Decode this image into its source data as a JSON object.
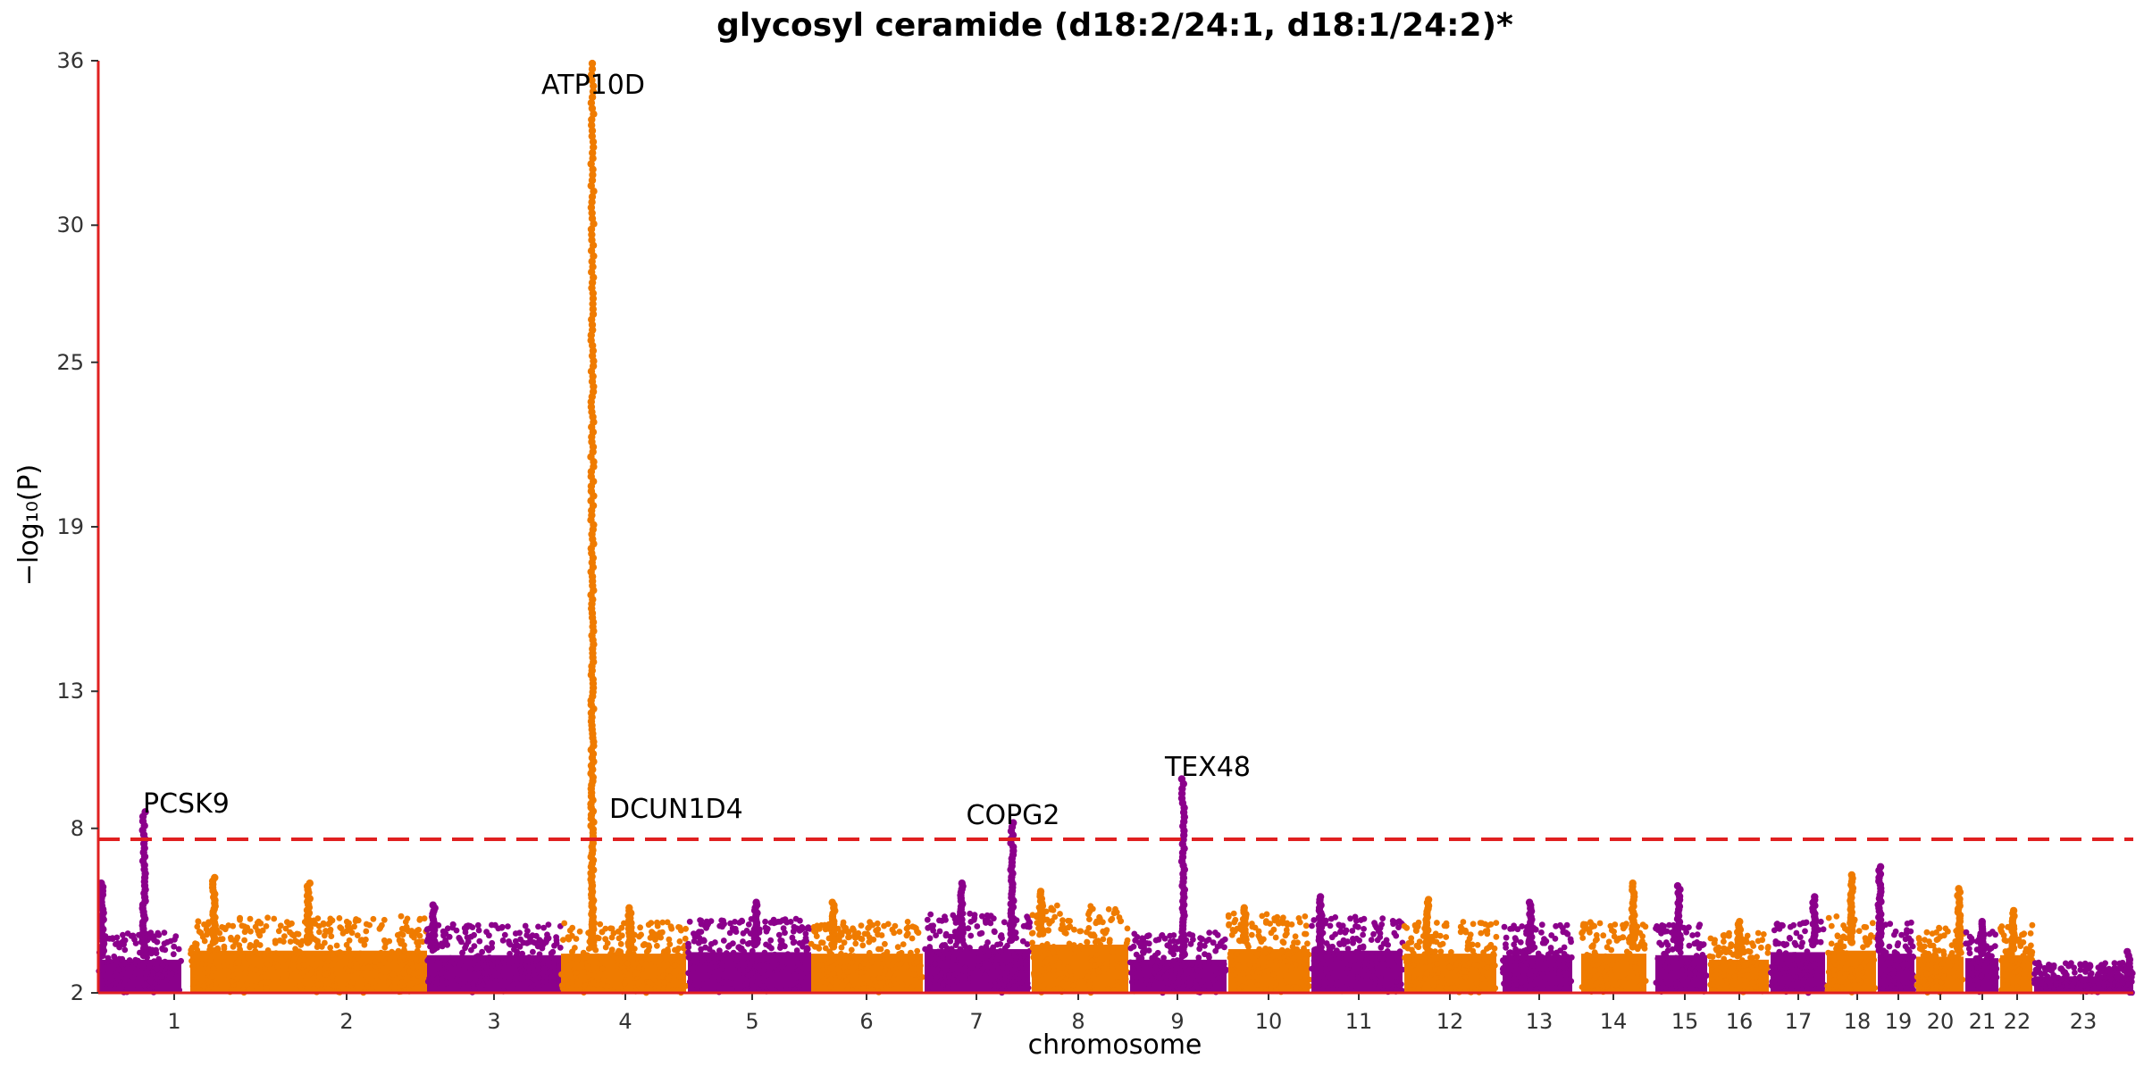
{
  "chart_data": {
    "type": "scatter",
    "title": "glycosyl ceramide (d18:2/24:1, d18:1/24:2)*",
    "xlabel": "chromosome",
    "ylabel": "−log₁₀(P)",
    "yticks": [
      2,
      8,
      13,
      19,
      25,
      30,
      36
    ],
    "ylim": [
      2,
      36
    ],
    "threshold": 7.6,
    "threshold_style": "dashed",
    "colors": {
      "odd": "#8b008b",
      "even": "#ef7b00",
      "axis": "#e02020",
      "threshold": "#e02020",
      "text": "#333333"
    },
    "chromosomes": [
      {
        "label": "1",
        "base": 4.2,
        "peaks": [
          {
            "x": 0.55,
            "y": 8.6
          },
          {
            "x": 0.05,
            "y": 6.0
          }
        ]
      },
      {
        "label": "2",
        "base": 4.8,
        "peaks": [
          {
            "x": 0.1,
            "y": 6.2
          },
          {
            "x": 0.5,
            "y": 6.0
          }
        ]
      },
      {
        "label": "3",
        "base": 4.5,
        "peaks": [
          {
            "x": 0.05,
            "y": 5.2
          }
        ]
      },
      {
        "label": "4",
        "base": 4.6,
        "peaks": [
          {
            "x": 0.25,
            "y": 35.9
          },
          {
            "x": 0.55,
            "y": 5.1
          }
        ]
      },
      {
        "label": "5",
        "base": 4.7,
        "peaks": [
          {
            "x": 0.55,
            "y": 5.3
          }
        ]
      },
      {
        "label": "6",
        "base": 4.6,
        "peaks": [
          {
            "x": 0.2,
            "y": 5.3
          }
        ]
      },
      {
        "label": "7",
        "base": 4.9,
        "peaks": [
          {
            "x": 0.83,
            "y": 8.2
          },
          {
            "x": 0.35,
            "y": 6.0
          }
        ]
      },
      {
        "label": "8",
        "base": 5.2,
        "peaks": [
          {
            "x": 0.1,
            "y": 5.7
          }
        ]
      },
      {
        "label": "9",
        "base": 4.2,
        "peaks": [
          {
            "x": 0.55,
            "y": 9.8
          }
        ]
      },
      {
        "label": "10",
        "base": 4.9,
        "peaks": [
          {
            "x": 0.2,
            "y": 5.1
          }
        ]
      },
      {
        "label": "11",
        "base": 4.8,
        "peaks": [
          {
            "x": 0.1,
            "y": 5.5
          }
        ]
      },
      {
        "label": "12",
        "base": 4.6,
        "peaks": [
          {
            "x": 0.25,
            "y": 5.4
          }
        ]
      },
      {
        "label": "13",
        "base": 4.5,
        "peaks": [
          {
            "x": 0.4,
            "y": 5.3
          }
        ]
      },
      {
        "label": "14",
        "base": 4.6,
        "peaks": [
          {
            "x": 0.8,
            "y": 6.0
          }
        ]
      },
      {
        "label": "15",
        "base": 4.5,
        "peaks": [
          {
            "x": 0.45,
            "y": 5.9
          }
        ]
      },
      {
        "label": "16",
        "base": 4.2,
        "peaks": [
          {
            "x": 0.5,
            "y": 4.6
          }
        ]
      },
      {
        "label": "17",
        "base": 4.7,
        "peaks": [
          {
            "x": 0.8,
            "y": 5.5
          }
        ]
      },
      {
        "label": "18",
        "base": 4.8,
        "peaks": [
          {
            "x": 0.5,
            "y": 6.3
          }
        ]
      },
      {
        "label": "19",
        "base": 4.6,
        "peaks": [
          {
            "x": 0.05,
            "y": 6.6
          }
        ]
      },
      {
        "label": "20",
        "base": 4.4,
        "peaks": [
          {
            "x": 0.9,
            "y": 5.8
          }
        ]
      },
      {
        "label": "21",
        "base": 4.3,
        "peaks": [
          {
            "x": 0.5,
            "y": 4.6
          }
        ]
      },
      {
        "label": "22",
        "base": 4.5,
        "peaks": [
          {
            "x": 0.4,
            "y": 5.0
          }
        ]
      },
      {
        "label": "23",
        "base": 3.1,
        "peaks": [
          {
            "x": 0.95,
            "y": 3.5
          }
        ]
      }
    ],
    "annotations": [
      {
        "label": "ATP10D",
        "chrom": "4",
        "y": 35.9
      },
      {
        "label": "PCSK9",
        "chrom": "1",
        "y": 8.6
      },
      {
        "label": "DCUN1D4",
        "chrom": "4",
        "y": 9.5
      },
      {
        "label": "COPG2",
        "chrom": "7",
        "y": 8.2
      },
      {
        "label": "TEX48",
        "chrom": "9",
        "y": 9.8
      }
    ]
  }
}
